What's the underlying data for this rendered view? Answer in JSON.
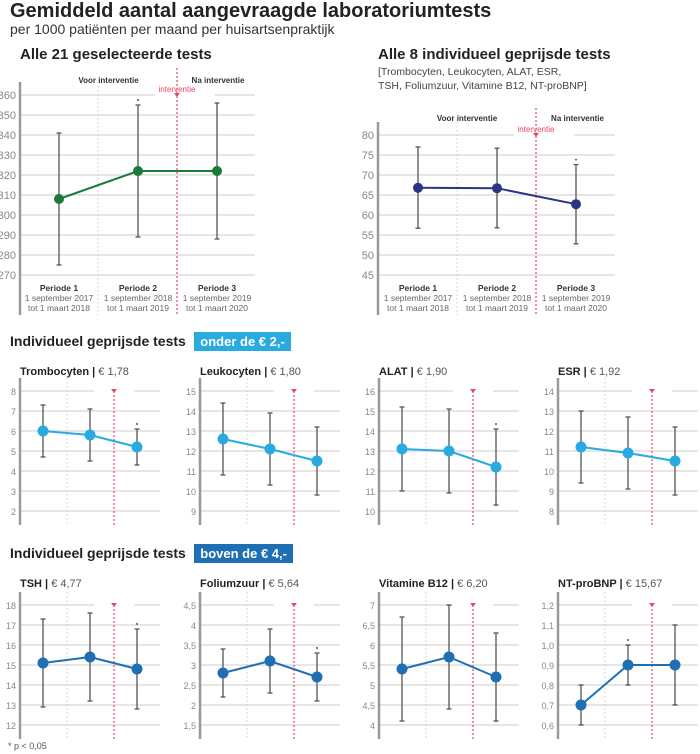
{
  "title": "Gemiddeld aantal aangevraagde laboratoriumtests",
  "subtitle": "per 1000 patiënten per maand per huisartsenpraktijk",
  "section_low": {
    "label": "Individueel geprijsde tests",
    "badge": "onder de € 2,-",
    "color": "#29abe2"
  },
  "section_high": {
    "label": "Individueel geprijsde tests",
    "badge": "boven de € 4,-",
    "color": "#1f6fb5"
  },
  "footnote": "* p < 0,05",
  "labels": {
    "before": "Voor interventie",
    "after": "Na interventie",
    "intervention": "interventie",
    "intervention_color": "#e8475f",
    "error_bar_color": "#555555"
  },
  "periods": [
    {
      "name": "Periode 1",
      "from": "1 september 2017",
      "to": "tot 1 maart 2018"
    },
    {
      "name": "Periode 2",
      "from": "1 september 2018",
      "to": "tot 1 maart 2019"
    },
    {
      "name": "Periode 3",
      "from": "1 september 2019",
      "to": "tot 1 maart 2020"
    }
  ],
  "chart_data": [
    {
      "id": "all21",
      "type": "line",
      "title": "Alle 21 geselecteerde tests",
      "color": "#1a7a3a",
      "yticks": [
        "360",
        "350",
        "340",
        "330",
        "320",
        "310",
        "300",
        "290",
        "280",
        "270"
      ],
      "ylim": [
        270,
        360
      ],
      "values": [
        308,
        322,
        322
      ],
      "lower": [
        275,
        289,
        288
      ],
      "upper": [
        341,
        355,
        356
      ],
      "significant": [
        false,
        true,
        false
      ]
    },
    {
      "id": "all8",
      "type": "line",
      "title": "Alle 8 individueel geprijsde tests",
      "subtitle1": "[Trombocyten, Leukocyten, ALAT, ESR,",
      "subtitle2": "TSH, Foliumzuur, Vitamine B12, NT-proBNP]",
      "color": "#2a3585",
      "yticks": [
        "80",
        "75",
        "70",
        "65",
        "60",
        "55",
        "50",
        "45"
      ],
      "ylim": [
        45,
        80
      ],
      "values": [
        66.8,
        66.7,
        62.7
      ],
      "lower": [
        56.7,
        56.8,
        52.8
      ],
      "upper": [
        77,
        76.7,
        72.6
      ],
      "significant": [
        false,
        false,
        true
      ]
    },
    {
      "id": "tromb",
      "type": "line",
      "name": "Trombocyten",
      "price": "€ 1,78",
      "color": "#29abe2",
      "yticks": [
        "8",
        "7",
        "6",
        "5",
        "4",
        "3",
        "2"
      ],
      "ylim": [
        2,
        8
      ],
      "values": [
        6.0,
        5.8,
        5.2
      ],
      "lower": [
        4.7,
        4.5,
        4.3
      ],
      "upper": [
        7.3,
        7.1,
        6.1
      ],
      "significant": [
        false,
        false,
        true
      ]
    },
    {
      "id": "leuko",
      "type": "line",
      "name": "Leukocyten",
      "price": "€ 1,80",
      "color": "#29abe2",
      "yticks": [
        "15",
        "14",
        "13",
        "12",
        "11",
        "10",
        "9"
      ],
      "ylim": [
        9,
        15
      ],
      "values": [
        12.6,
        12.1,
        11.5
      ],
      "lower": [
        10.8,
        10.3,
        9.8
      ],
      "upper": [
        14.4,
        13.9,
        13.2
      ],
      "significant": [
        false,
        false,
        false
      ]
    },
    {
      "id": "alat",
      "type": "line",
      "name": "ALAT",
      "price": "€ 1,90",
      "color": "#29abe2",
      "yticks": [
        "16",
        "15",
        "14",
        "13",
        "12",
        "11",
        "10"
      ],
      "ylim": [
        10,
        16
      ],
      "values": [
        13.1,
        13.0,
        12.2
      ],
      "lower": [
        11.0,
        10.9,
        10.3
      ],
      "upper": [
        15.2,
        15.1,
        14.1
      ],
      "significant": [
        false,
        false,
        true
      ]
    },
    {
      "id": "esr",
      "type": "line",
      "name": "ESR",
      "price": "€ 1,92",
      "color": "#29abe2",
      "yticks": [
        "14",
        "13",
        "12",
        "11",
        "10",
        "9",
        "8"
      ],
      "ylim": [
        8,
        14
      ],
      "values": [
        11.2,
        10.9,
        10.5
      ],
      "lower": [
        9.4,
        9.1,
        8.8
      ],
      "upper": [
        13.0,
        12.7,
        12.2
      ],
      "significant": [
        false,
        false,
        false
      ]
    },
    {
      "id": "tsh",
      "type": "line",
      "name": "TSH",
      "price": "€ 4,77",
      "color": "#1f6fb5",
      "yticks": [
        "18",
        "17",
        "16",
        "15",
        "14",
        "13",
        "12"
      ],
      "ylim": [
        12,
        18
      ],
      "values": [
        15.1,
        15.4,
        14.8
      ],
      "lower": [
        12.9,
        13.2,
        12.8
      ],
      "upper": [
        17.3,
        17.6,
        16.8
      ],
      "significant": [
        false,
        false,
        true
      ]
    },
    {
      "id": "folium",
      "type": "line",
      "name": "Foliumzuur",
      "price": "€ 5,64",
      "color": "#1f6fb5",
      "yticks": [
        "4,5",
        "4",
        "3,5",
        "3",
        "2,5",
        "2",
        "1,5"
      ],
      "ylim": [
        1.5,
        4.5
      ],
      "values": [
        2.8,
        3.1,
        2.7
      ],
      "lower": [
        2.2,
        2.3,
        2.1
      ],
      "upper": [
        3.4,
        3.9,
        3.3
      ],
      "significant": [
        false,
        false,
        true
      ]
    },
    {
      "id": "b12",
      "type": "line",
      "name": "Vitamine B12",
      "price": "€ 6,20",
      "color": "#1f6fb5",
      "yticks": [
        "7",
        "6,5",
        "6",
        "5,5",
        "5",
        "4,5",
        "4"
      ],
      "ylim": [
        4,
        7
      ],
      "values": [
        5.4,
        5.7,
        5.2
      ],
      "lower": [
        4.1,
        4.4,
        4.1
      ],
      "upper": [
        6.7,
        7.0,
        6.3
      ],
      "significant": [
        false,
        false,
        false
      ]
    },
    {
      "id": "ntprobnp",
      "type": "line",
      "name": "NT-proBNP",
      "price": "€ 15,67",
      "color": "#1f6fb5",
      "yticks": [
        "1,2",
        "1,1",
        "1,0",
        "0,9",
        "0,8",
        "0,7",
        "0,6"
      ],
      "ylim": [
        0.6,
        1.2
      ],
      "values": [
        0.7,
        0.9,
        0.9
      ],
      "lower": [
        0.6,
        0.8,
        0.7
      ],
      "upper": [
        0.8,
        1.0,
        1.1
      ],
      "significant": [
        false,
        true,
        false
      ]
    }
  ]
}
